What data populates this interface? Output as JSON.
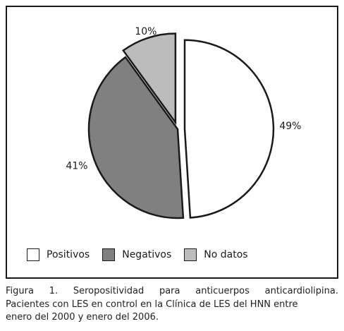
{
  "chart_data": {
    "type": "pie",
    "categories": [
      "Positivos",
      "Negativos",
      "No datos"
    ],
    "values": [
      49,
      41,
      10
    ],
    "labels": [
      "49%",
      "41%",
      "10%"
    ],
    "colors": [
      "#ffffff",
      "#808080",
      "#bcbcbc"
    ],
    "exploded": [
      true,
      false,
      true
    ],
    "start_angle_deg": 0,
    "direction": "clockwise",
    "legend_position": "bottom-left"
  },
  "legend": {
    "items": [
      {
        "label": "Positivos",
        "color": "#ffffff"
      },
      {
        "label": "Negativos",
        "color": "#808080"
      },
      {
        "label": "No datos",
        "color": "#bcbcbc"
      }
    ]
  },
  "caption": {
    "line1": "Figura 1. Seropositividad para anticuerpos anticardiolipina.",
    "line2": "Pacientes con LES en control en la Clínica de LES del HNN entre",
    "line3": "enero del 2000 y enero del 2006."
  }
}
